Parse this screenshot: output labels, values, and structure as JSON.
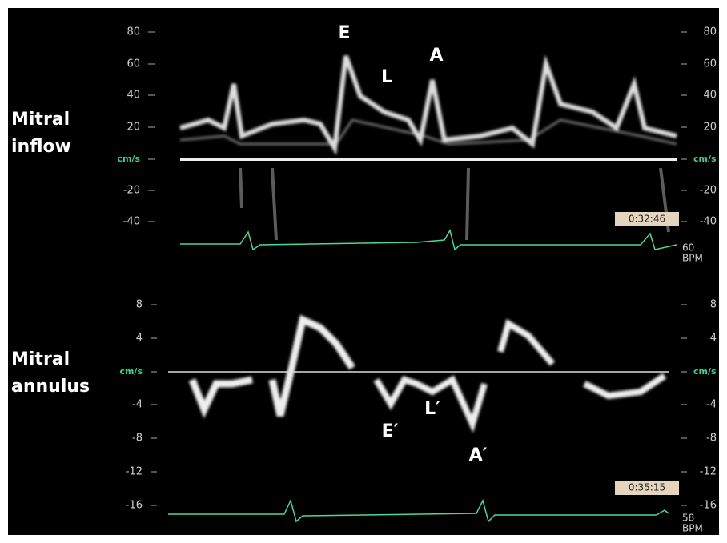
{
  "panels": [
    {
      "title_lines": [
        "Mitral",
        "inflow"
      ],
      "left_axis": [
        "80",
        "60",
        "40",
        "20",
        "cm/s",
        "-20",
        "-40"
      ],
      "right_axis": [
        "80",
        "60",
        "40",
        "20",
        "cm/s",
        "-20",
        "-40"
      ],
      "annotations": [
        "E",
        "L",
        "A"
      ],
      "timestamp": "0:32:46",
      "heart_rate": "60",
      "heart_rate_unit": "BPM"
    },
    {
      "title_lines": [
        "Mitral",
        "annulus"
      ],
      "left_axis": [
        "8",
        "4",
        "cm/s",
        "-4",
        "-8",
        "-12",
        "-16"
      ],
      "right_axis": [
        "8",
        "4",
        "cm/s",
        "-4",
        "-8",
        "-12",
        "-16"
      ],
      "annotations": [
        "E′",
        "L′",
        "A′"
      ],
      "timestamp": "0:35:15",
      "heart_rate": "58",
      "heart_rate_unit": "BPM"
    }
  ]
}
